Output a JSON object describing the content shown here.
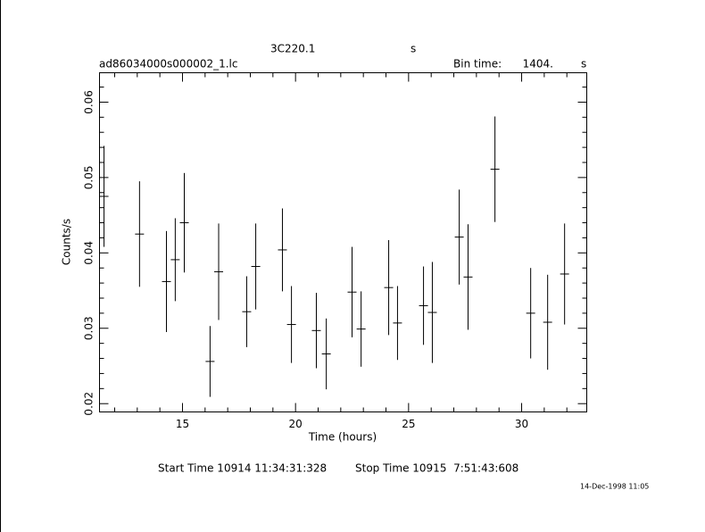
{
  "chart_data": {
    "type": "errorbar",
    "title": "3C220.1",
    "title_unit": "s",
    "filename": "ad86034000s000002_1.lc",
    "bin_label": "Bin time:",
    "bin_value": "1404.",
    "bin_unit": "s",
    "xlabel": "Time (hours)",
    "ylabel": "Counts/s",
    "start_time": "Start Time 10914 11:34:31:328",
    "stop_time": "Stop Time 10915  7:51:43:608",
    "date_stamp": "14-Dec-1998 11:05",
    "xlim": [
      11.33,
      32.88
    ],
    "ylim": [
      0.0189,
      0.0639
    ],
    "xticks": [
      15,
      20,
      25,
      30
    ],
    "yticks": [
      0.02,
      0.03,
      0.04,
      0.05,
      0.06
    ],
    "xminor_ticks": [
      12,
      13,
      14,
      16,
      17,
      18,
      19,
      21,
      22,
      23,
      24,
      26,
      27,
      28,
      29,
      31,
      32
    ],
    "yminor_ticks": [
      0.022,
      0.024,
      0.026,
      0.028,
      0.032,
      0.034,
      0.036,
      0.038,
      0.042,
      0.044,
      0.046,
      0.048,
      0.052,
      0.054,
      0.056,
      0.058,
      0.062
    ],
    "color": "#000000",
    "x": [
      11.53,
      13.1,
      14.29,
      14.68,
      15.08,
      16.22,
      16.6,
      17.84,
      18.24,
      19.42,
      19.82,
      20.92,
      21.36,
      22.5,
      22.9,
      24.12,
      24.51,
      25.66,
      26.05,
      27.24,
      27.63,
      28.82,
      30.4,
      31.15,
      31.9
    ],
    "values": [
      0.0475,
      0.0425,
      0.0362,
      0.0391,
      0.044,
      0.0256,
      0.0375,
      0.0322,
      0.0382,
      0.0404,
      0.0305,
      0.0297,
      0.0266,
      0.0348,
      0.0299,
      0.0354,
      0.0307,
      0.033,
      0.0321,
      0.0421,
      0.0368,
      0.0511,
      0.032,
      0.0308,
      0.0372
    ],
    "errors": [
      0.0067,
      0.007,
      0.0067,
      0.0055,
      0.0066,
      0.0047,
      0.0064,
      0.0047,
      0.0057,
      0.0055,
      0.0051,
      0.005,
      0.0047,
      0.006,
      0.005,
      0.0063,
      0.0049,
      0.0052,
      0.0067,
      0.0063,
      0.007,
      0.007,
      0.006,
      0.0063,
      0.0067
    ]
  }
}
